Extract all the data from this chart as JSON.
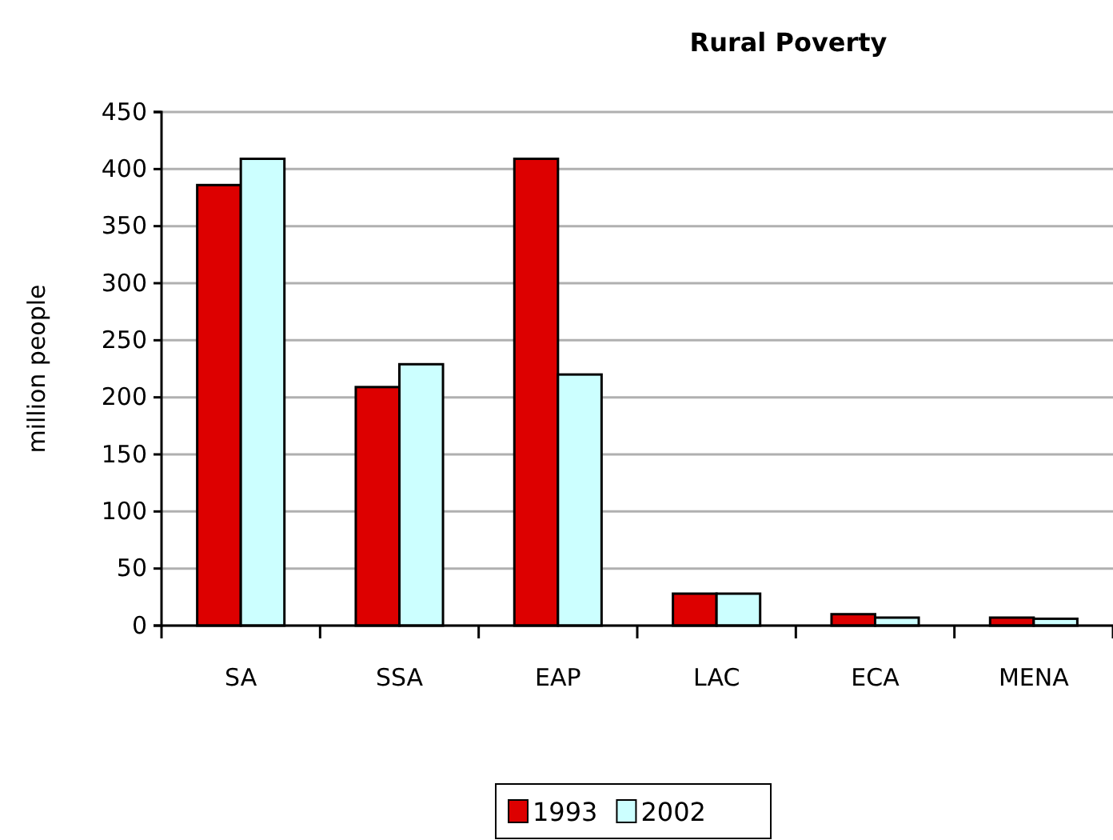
{
  "chart_data": {
    "type": "bar",
    "title": "Rural Poverty",
    "ylabel": "million people",
    "categories": [
      "SA",
      "SSA",
      "EAP",
      "LAC",
      "ECA",
      "MENA"
    ],
    "series": [
      {
        "name": "1993",
        "color": "#dd0000",
        "values": [
          386,
          209,
          409,
          28,
          10,
          7
        ]
      },
      {
        "name": "2002",
        "color": "#ccffff",
        "values": [
          409,
          229,
          220,
          28,
          7,
          6
        ]
      }
    ],
    "ylim": [
      0,
      450
    ],
    "yticks": [
      0,
      50,
      100,
      150,
      200,
      250,
      300,
      350,
      400,
      450
    ],
    "grid": "y",
    "legend": "bottom"
  }
}
